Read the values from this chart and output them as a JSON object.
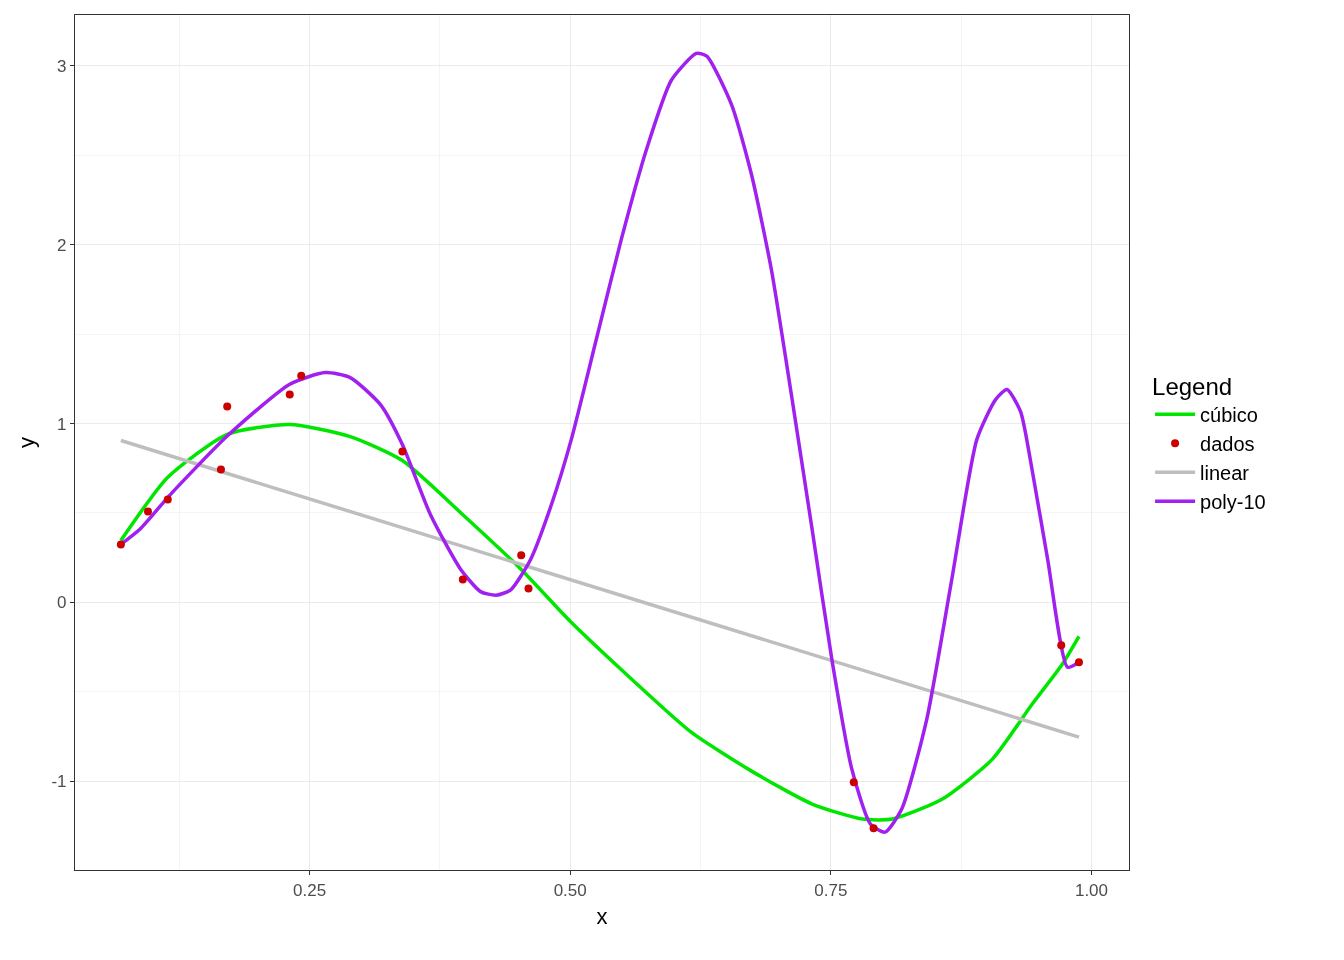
{
  "chart_data": {
    "type": "line",
    "xlabel": "x",
    "ylabel": "y",
    "legend_title": "Legend",
    "legend": "right",
    "grid": true,
    "xlim": [
      0.025,
      1.036
    ],
    "xticks": [
      {
        "value": 0.25,
        "label": "0.25"
      },
      {
        "value": 0.5,
        "label": "0.50"
      },
      {
        "value": 0.75,
        "label": "0.75"
      },
      {
        "value": 1,
        "label": "1.00"
      }
    ],
    "ylim": [
      -1.497,
      3.285
    ],
    "yticks": [
      -1,
      0,
      1,
      2,
      3
    ],
    "series": [
      {
        "name": "cúbico",
        "marker": "none",
        "color": "#00e600",
        "x": [
          0.069,
          0.114,
          0.171,
          0.231,
          0.289,
          0.339,
          0.397,
          0.453,
          0.5,
          0.559,
          0.616,
          0.674,
          0.732,
          0.78,
          0.809,
          0.857,
          0.905,
          0.943,
          0.972,
          0.988
        ],
        "values": [
          0.346,
          0.7,
          0.94,
          0.994,
          0.927,
          0.793,
          0.49,
          0.184,
          -0.106,
          -0.43,
          -0.726,
          -0.944,
          -1.128,
          -1.212,
          -1.212,
          -1.1,
          -0.877,
          -0.57,
          -0.346,
          -0.19
        ]
      },
      {
        "name": "dados",
        "type": "scatter",
        "marker": "circle",
        "color": "#cc0000",
        "x": [
          0.069,
          0.095,
          0.114,
          0.165,
          0.171,
          0.231,
          0.242,
          0.339,
          0.397,
          0.453,
          0.46,
          0.772,
          0.791,
          0.971,
          0.988
        ],
        "values": [
          0.324,
          0.508,
          0.575,
          0.743,
          1.095,
          1.162,
          1.268,
          0.844,
          0.128,
          0.263,
          0.078,
          -1.006,
          -1.263,
          -0.24,
          -0.335
        ]
      },
      {
        "name": "linear",
        "marker": "none",
        "color": "#bebebe",
        "x": [
          0.069,
          0.988
        ],
        "values": [
          0.905,
          -0.754
        ]
      },
      {
        "name": "poly-10",
        "marker": "none",
        "color": "#a020f0",
        "x": [
          0.069,
          0.0875,
          0.116,
          0.171,
          0.231,
          0.265,
          0.289,
          0.318,
          0.339,
          0.366,
          0.395,
          0.414,
          0.429,
          0.443,
          0.462,
          0.482,
          0.501,
          0.525,
          0.549,
          0.573,
          0.597,
          0.621,
          0.631,
          0.655,
          0.674,
          0.693,
          0.713,
          0.732,
          0.751,
          0.77,
          0.788,
          0.802,
          0.818,
          0.842,
          0.866,
          0.89,
          0.908,
          0.919,
          0.932,
          0.943,
          0.958,
          0.977,
          0.988
        ],
        "values": [
          0.324,
          0.41,
          0.6,
          0.93,
          1.22,
          1.285,
          1.257,
          1.106,
          0.883,
          0.49,
          0.184,
          0.06,
          0.04,
          0.07,
          0.24,
          0.547,
          0.91,
          1.47,
          2.03,
          2.53,
          2.92,
          3.07,
          3.055,
          2.78,
          2.39,
          1.86,
          1.13,
          0.41,
          -0.32,
          -0.93,
          -1.24,
          -1.285,
          -1.156,
          -0.654,
          0.128,
          0.91,
          1.134,
          1.19,
          1.067,
          0.743,
          0.24,
          -0.363,
          -0.335
        ]
      }
    ]
  }
}
